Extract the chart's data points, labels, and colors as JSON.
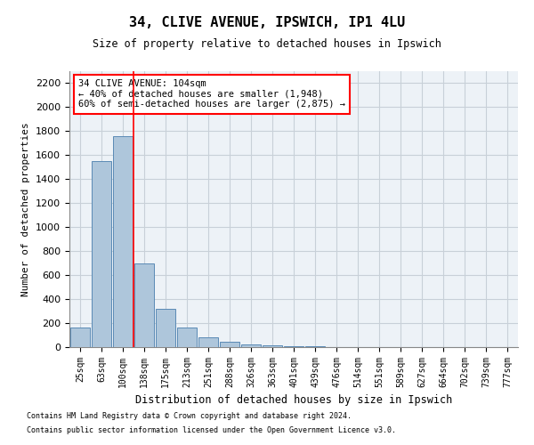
{
  "title1": "34, CLIVE AVENUE, IPSWICH, IP1 4LU",
  "title2": "Size of property relative to detached houses in Ipswich",
  "xlabel": "Distribution of detached houses by size in Ipswich",
  "ylabel": "Number of detached properties",
  "categories": [
    "25sqm",
    "63sqm",
    "100sqm",
    "138sqm",
    "175sqm",
    "213sqm",
    "251sqm",
    "288sqm",
    "326sqm",
    "363sqm",
    "401sqm",
    "439sqm",
    "476sqm",
    "514sqm",
    "551sqm",
    "589sqm",
    "627sqm",
    "664sqm",
    "702sqm",
    "739sqm",
    "777sqm"
  ],
  "values": [
    160,
    1548,
    1760,
    700,
    320,
    160,
    80,
    45,
    25,
    15,
    8,
    5,
    3,
    2,
    1,
    1,
    1,
    0,
    0,
    0,
    0
  ],
  "bar_color": "#aec6db",
  "bar_edge_color": "#5a8ab5",
  "red_line_x": 2.5,
  "annotation_title": "34 CLIVE AVENUE: 104sqm",
  "annotation_line1": "← 40% of detached houses are smaller (1,948)",
  "annotation_line2": "60% of semi-detached houses are larger (2,875) →",
  "ylim": [
    0,
    2300
  ],
  "yticks": [
    0,
    200,
    400,
    600,
    800,
    1000,
    1200,
    1400,
    1600,
    1800,
    2000,
    2200
  ],
  "footer1": "Contains HM Land Registry data © Crown copyright and database right 2024.",
  "footer2": "Contains public sector information licensed under the Open Government Licence v3.0.",
  "bg_color": "#edf2f7",
  "grid_color": "#c8d0d8"
}
